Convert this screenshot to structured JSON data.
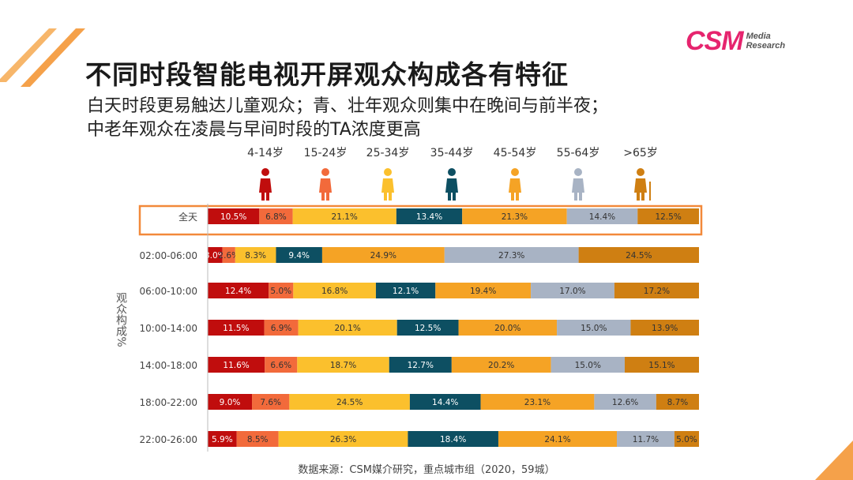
{
  "logo": {
    "brand": "CSM",
    "line1": "Media",
    "line2": "Research"
  },
  "title": "不同时段智能电视开屏观众构成各有特征",
  "subtitle_line1": "白天时段更易触达儿童观众；青、壮年观众则集中在晚间与前半夜；",
  "subtitle_line2": "中老年观众在凌晨与早间时段的TA浓度更高",
  "source": "数据来源：CSM媒介研究，重点城市组（2020，59城）",
  "colors": {
    "accent_orange": "#f2893a",
    "series": [
      "#c00d0d",
      "#f26a3b",
      "#fbc02d",
      "#0d4f62",
      "#f5a325",
      "#a8b3c4",
      "#cf7f12"
    ]
  },
  "chart_data": {
    "type": "bar",
    "orientation": "horizontal-stacked-100",
    "ylabel": "观众构成%",
    "categories": [
      "全天",
      "02:00-06:00",
      "06:00-10:00",
      "10:00-14:00",
      "14:00-18:00",
      "18:00-22:00",
      "22:00-26:00"
    ],
    "highlight_category": "全天",
    "series": [
      {
        "name": "4-14岁",
        "values": [
          10.5,
          3.0,
          12.4,
          11.5,
          11.6,
          9.0,
          5.9
        ],
        "labels": [
          "10.5%",
          "3.0%",
          "12.4%",
          "11.5%",
          "11.6%",
          "9.0%",
          "5.9%"
        ]
      },
      {
        "name": "15-24岁",
        "values": [
          6.8,
          2.6,
          5.0,
          6.9,
          6.6,
          7.6,
          8.5
        ],
        "labels": [
          "6.8%",
          "2.6%",
          "5.0%",
          "6.9%",
          "6.6%",
          "7.6%",
          "8.5%"
        ]
      },
      {
        "name": "25-34岁",
        "values": [
          21.1,
          8.3,
          16.8,
          20.1,
          18.7,
          24.5,
          26.3
        ],
        "labels": [
          "21.1%",
          "8.3%",
          "16.8%",
          "20.1%",
          "18.7%",
          "24.5%",
          "26.3%"
        ]
      },
      {
        "name": "35-44岁",
        "values": [
          13.4,
          9.4,
          12.1,
          12.5,
          12.7,
          14.4,
          18.4
        ],
        "labels": [
          "13.4%",
          "9.4%",
          "12.1%",
          "12.5%",
          "12.7%",
          "14.4%",
          "18.4%"
        ]
      },
      {
        "name": "45-54岁",
        "values": [
          21.3,
          24.9,
          19.4,
          20.0,
          20.2,
          23.1,
          24.1
        ],
        "labels": [
          "21.3%",
          "24.9%",
          "19.4%",
          "20.0%",
          "20.2%",
          "23.1%",
          "24.1%"
        ]
      },
      {
        "name": "55-64岁",
        "values": [
          14.4,
          27.3,
          17.0,
          15.0,
          15.0,
          12.6,
          11.7
        ],
        "labels": [
          "14.4%",
          "27.3%",
          "17.0%",
          "15.0%",
          "15.0%",
          "12.6%",
          "11.7%"
        ]
      },
      {
        "name": ">65岁",
        "values": [
          12.5,
          24.5,
          17.2,
          13.9,
          15.1,
          8.7,
          5.0
        ],
        "labels": [
          "12.5%",
          "24.5%",
          "17.2%",
          "13.9%",
          "15.1%",
          "8.7%",
          "5.0%"
        ]
      }
    ]
  }
}
